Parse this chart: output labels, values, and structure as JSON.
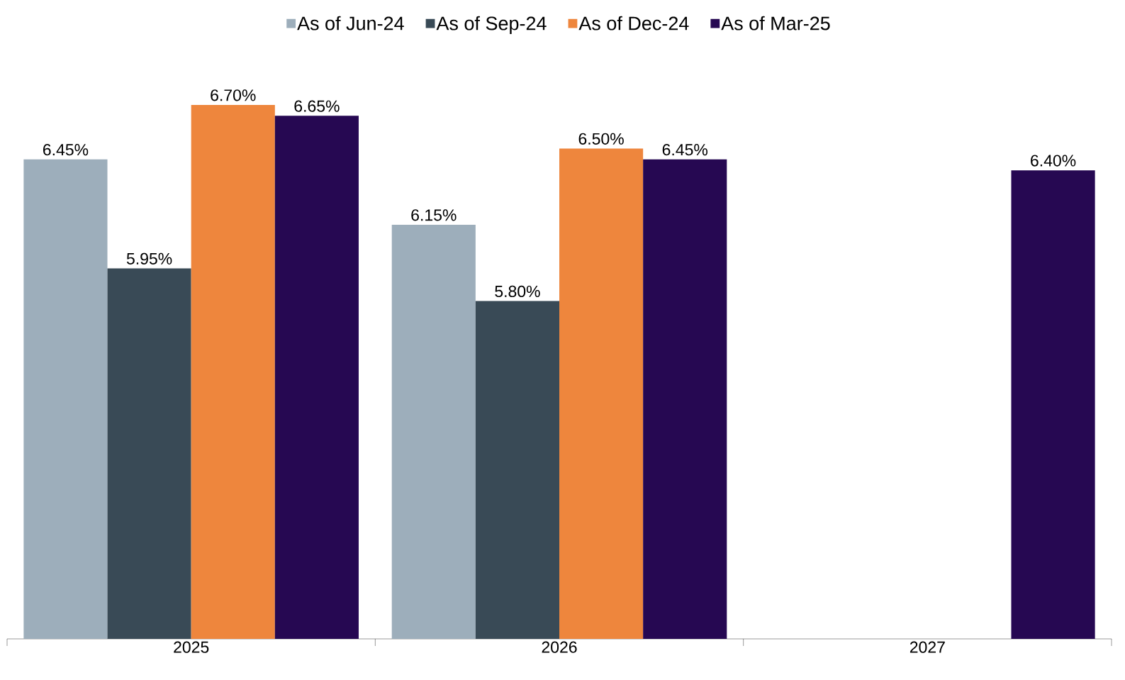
{
  "chart_data": {
    "type": "bar",
    "categories": [
      "2025",
      "2026",
      "2027"
    ],
    "series": [
      {
        "name": "As of Jun-24",
        "color": "#9daebb",
        "values": [
          6.45,
          6.15,
          null
        ],
        "value_labels": [
          "6.45%",
          "6.15%",
          null
        ]
      },
      {
        "name": "As of Sep-24",
        "color": "#394a56",
        "values": [
          5.95,
          5.8,
          null
        ],
        "value_labels": [
          "5.95%",
          "5.80%",
          null
        ]
      },
      {
        "name": "As of Dec-24",
        "color": "#ee863d",
        "values": [
          6.7,
          6.5,
          null
        ],
        "value_labels": [
          "6.70%",
          "6.50%",
          null
        ]
      },
      {
        "name": "As of Mar-25",
        "color": "#260852",
        "values": [
          6.65,
          6.45,
          6.4
        ],
        "value_labels": [
          "6.65%",
          "6.45%",
          "6.40%"
        ]
      }
    ],
    "ylim": [
      4.25,
      6.7
    ],
    "tick_labels": "x",
    "legend": "top"
  }
}
